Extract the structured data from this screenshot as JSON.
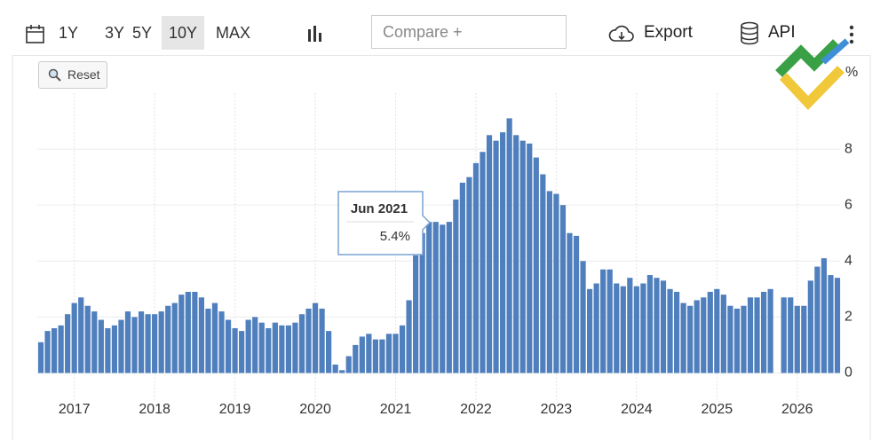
{
  "toolbar": {
    "ranges": [
      "1Y",
      "3Y",
      "5Y",
      "10Y",
      "MAX"
    ],
    "active_range": "10Y",
    "compare": "Compare +",
    "export": "Export",
    "api": "API",
    "reset": "Reset"
  },
  "chart_data": {
    "type": "bar",
    "y_unit": "%",
    "color": "#4f7fbd",
    "categories": [
      null,
      null,
      null,
      null,
      null,
      "2017",
      null,
      null,
      null,
      null,
      null,
      null,
      null,
      null,
      null,
      null,
      null,
      "2018",
      null,
      null,
      null,
      null,
      null,
      null,
      null,
      null,
      null,
      null,
      null,
      "2019",
      null,
      null,
      null,
      null,
      null,
      null,
      null,
      null,
      null,
      null,
      null,
      "2020",
      null,
      null,
      null,
      null,
      null,
      null,
      null,
      null,
      null,
      null,
      null,
      "2021",
      null,
      null,
      null,
      null,
      null,
      null,
      null,
      null,
      null,
      null,
      null,
      "2022",
      null,
      null,
      null,
      null,
      null,
      null,
      null,
      null,
      null,
      null,
      null,
      "2023",
      null,
      null,
      null,
      null,
      null,
      null,
      null,
      null,
      null,
      null,
      null,
      "2024",
      null,
      null,
      null,
      null,
      null,
      null,
      null,
      null,
      null,
      null,
      null,
      "2025",
      null,
      null,
      null,
      null,
      null,
      null,
      null,
      null,
      null,
      null,
      null,
      "2026",
      null,
      null,
      null,
      null,
      null,
      null
    ],
    "values": [
      1.1,
      1.5,
      1.6,
      1.7,
      2.1,
      2.5,
      2.7,
      2.4,
      2.2,
      1.9,
      1.6,
      1.7,
      1.9,
      2.2,
      2.0,
      2.2,
      2.1,
      2.1,
      2.2,
      2.4,
      2.5,
      2.8,
      2.9,
      2.9,
      2.7,
      2.3,
      2.5,
      2.2,
      1.9,
      1.6,
      1.5,
      1.9,
      2.0,
      1.8,
      1.6,
      1.8,
      1.7,
      1.7,
      1.8,
      2.1,
      2.3,
      2.5,
      2.3,
      1.5,
      0.3,
      0.1,
      0.6,
      1.0,
      1.3,
      1.4,
      1.2,
      1.2,
      1.4,
      1.4,
      1.7,
      2.6,
      4.2,
      5.0,
      5.4,
      5.4,
      5.3,
      5.4,
      6.2,
      6.8,
      7.0,
      7.5,
      7.9,
      8.5,
      8.3,
      8.6,
      9.1,
      8.5,
      8.3,
      8.2,
      7.7,
      7.1,
      6.5,
      6.4,
      6.0,
      5.0,
      4.9,
      4.0,
      3.0,
      3.2,
      3.7,
      3.7,
      3.2,
      3.1,
      3.4,
      3.1,
      3.2,
      3.5,
      3.4,
      3.3,
      3.0,
      2.9,
      2.5,
      2.4,
      2.6,
      2.7,
      2.9,
      3.0,
      2.8,
      2.4,
      2.3,
      2.4,
      2.7,
      2.7,
      2.9,
      3.0,
      null,
      2.7,
      2.7,
      2.4,
      2.4,
      3.3,
      3.8,
      4.1,
      3.5,
      3.4
    ],
    "ylim": [
      -1,
      10
    ],
    "yticks": [
      0,
      2,
      4,
      6,
      8
    ],
    "grid": true,
    "tooltip": {
      "category": "Jun 2021",
      "value_label": "5.4%"
    }
  }
}
